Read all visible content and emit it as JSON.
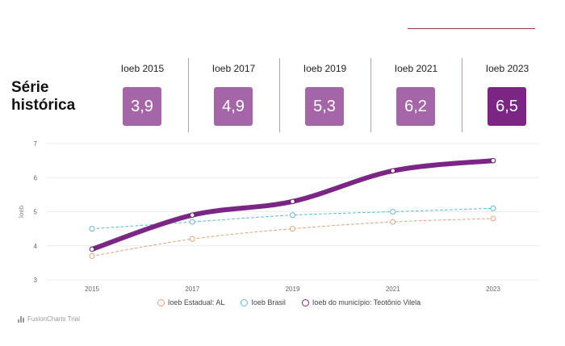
{
  "title_line1": "Série",
  "title_line2": "histórica",
  "score_cards": [
    {
      "label": "Ioeb 2015",
      "value": "3,9"
    },
    {
      "label": "Ioeb 2017",
      "value": "4,9"
    },
    {
      "label": "Ioeb 2019",
      "value": "5,3"
    },
    {
      "label": "Ioeb 2021",
      "value": "6,2"
    },
    {
      "label": "Ioeb 2023",
      "value": "6,5"
    }
  ],
  "colors": {
    "card": "#a566a8",
    "card_current": "#7b2585",
    "estadual": "#e2a07a",
    "brasil": "#5fb7d9",
    "municipio": "#7b2585"
  },
  "branding": "FusionCharts Trial",
  "chart_data": {
    "type": "line",
    "x": [
      "2015",
      "2017",
      "2019",
      "2021",
      "2023"
    ],
    "ylabel": "Ioeb",
    "ylim": [
      3,
      7
    ],
    "yticks": [
      "3",
      "4",
      "5",
      "6",
      "7"
    ],
    "grid": true,
    "legend_position": "bottom",
    "series": [
      {
        "name": "Ioeb Estadual: AL",
        "values": [
          3.7,
          4.2,
          4.5,
          4.7,
          4.8
        ],
        "style": "dashed",
        "color": "#e2a07a"
      },
      {
        "name": "Ioeb Brasil",
        "values": [
          4.5,
          4.7,
          4.9,
          5.0,
          5.1
        ],
        "style": "dashed",
        "color": "#5fb7d9"
      },
      {
        "name": "Ioeb do município: Teotônio Vilela",
        "values": [
          3.9,
          4.9,
          5.3,
          6.2,
          6.5
        ],
        "style": "thick",
        "color": "#7b2585"
      }
    ]
  }
}
